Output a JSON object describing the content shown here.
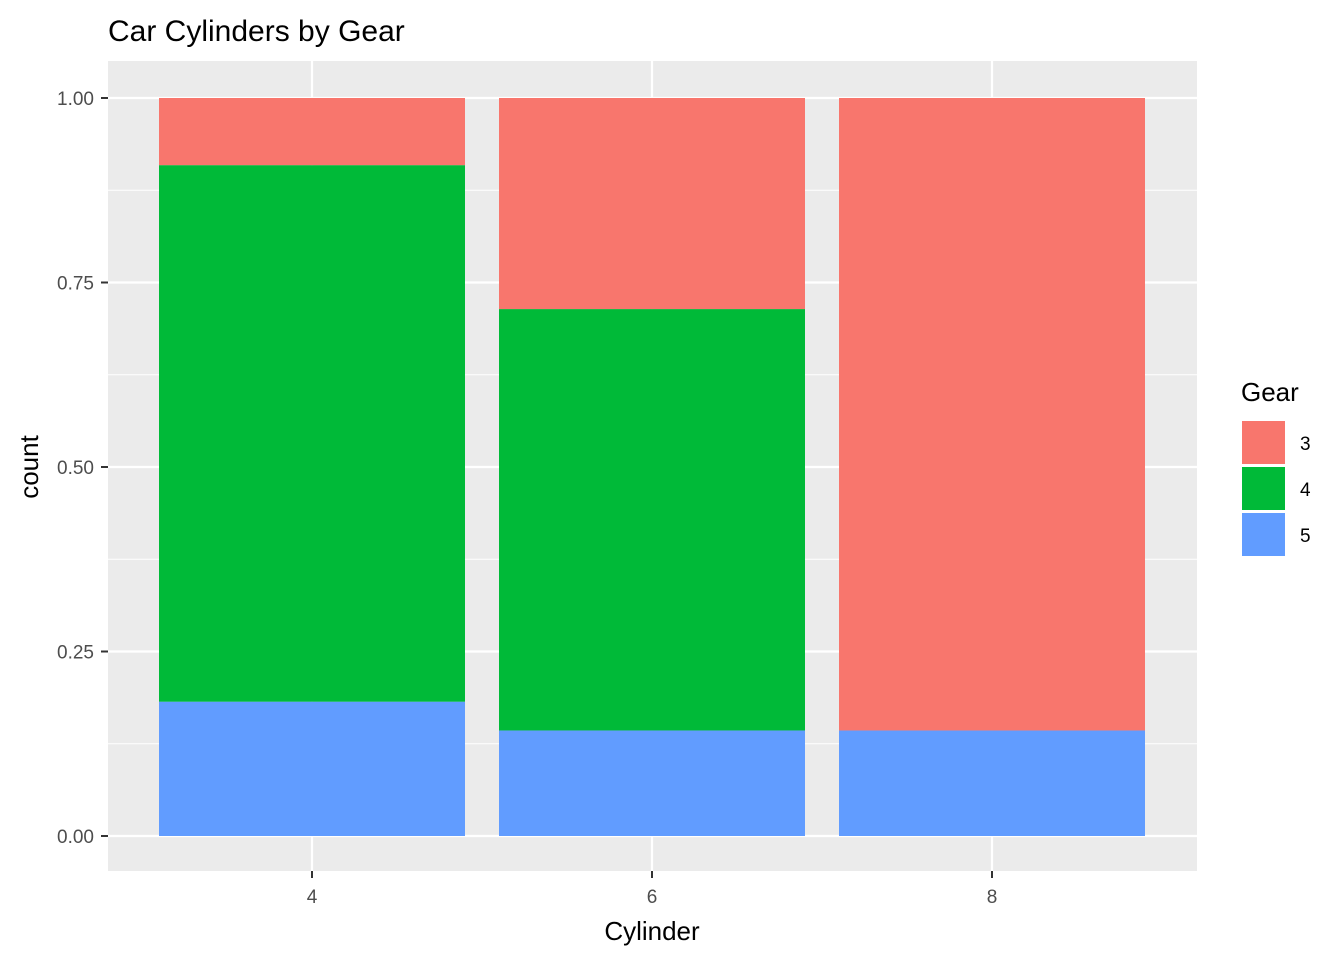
{
  "chart_data": {
    "type": "bar",
    "stacked": true,
    "position": "fill",
    "title": "Car Cylinders by Gear",
    "xlabel": "Cylinder",
    "ylabel": "count",
    "categories": [
      "4",
      "6",
      "8"
    ],
    "series": [
      {
        "name": "3",
        "color": "#F8766D",
        "values": [
          0.091,
          0.286,
          0.857
        ]
      },
      {
        "name": "4",
        "color": "#00BA38",
        "values": [
          0.727,
          0.571,
          0.0
        ]
      },
      {
        "name": "5",
        "color": "#619CFF",
        "values": [
          0.182,
          0.143,
          0.143
        ]
      }
    ],
    "stack_order_bottom_to_top": [
      "5",
      "4",
      "3"
    ],
    "ylim": [
      0,
      1
    ],
    "yticks": [
      "0.00",
      "0.25",
      "0.50",
      "0.75",
      "1.00"
    ],
    "grid": true,
    "legend": {
      "title": "Gear",
      "placement": "right"
    },
    "panel_background": "#EBEBEB",
    "gridline_color": "#FFFFFF"
  }
}
